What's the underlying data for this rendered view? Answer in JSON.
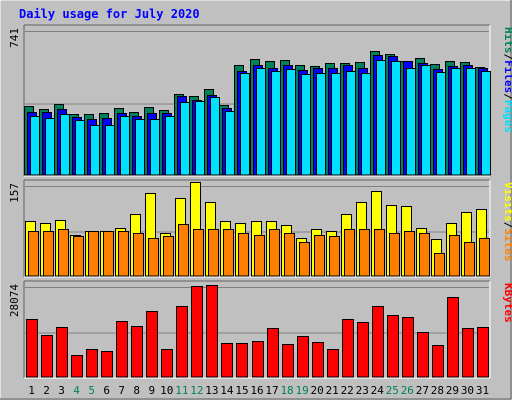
{
  "chart_data": {
    "type": "bar",
    "title": "Daily usage for July 2020",
    "x": [
      "1",
      "2",
      "3",
      "4",
      "5",
      "6",
      "7",
      "8",
      "9",
      "10",
      "11",
      "12",
      "13",
      "14",
      "15",
      "16",
      "17",
      "18",
      "19",
      "20",
      "21",
      "22",
      "23",
      "24",
      "25",
      "26",
      "27",
      "28",
      "29",
      "30",
      "31"
    ],
    "weekend_days": [
      "4",
      "5",
      "11",
      "12",
      "18",
      "19",
      "25",
      "26"
    ],
    "panels": [
      {
        "id": "hits",
        "ymax_label": "741",
        "ymax": 741,
        "grid_lines": 2,
        "axis_labels": [
          {
            "text": "Hits",
            "color": "#00805c"
          },
          {
            "text": "/",
            "color": "#000000"
          },
          {
            "text": "Files",
            "color": "#0000ff"
          },
          {
            "text": "/",
            "color": "#000000"
          },
          {
            "text": "Pages",
            "color": "#00e0ff"
          }
        ],
        "series": [
          {
            "name": "Hits",
            "color": "#00805c",
            "values": [
              357,
              344,
              369,
              315,
              315,
              323,
              347,
              325,
              352,
              335,
              421,
              409,
              445,
              361,
              566,
              596,
              590,
              595,
              566,
              563,
              576,
              576,
              582,
              638,
              626,
              589,
              601,
              572,
              589,
              584,
              559
            ]
          },
          {
            "name": "Files",
            "color": "#0000ff",
            "values": [
              327,
              327,
              341,
              299,
              291,
              294,
              324,
              307,
              320,
              320,
              408,
              389,
              415,
              345,
              536,
              566,
              554,
              566,
              541,
              553,
              553,
              566,
              553,
              619,
              614,
              589,
              575,
              545,
              563,
              566,
              553
            ]
          },
          {
            "name": "Pages",
            "color": "#00e0ff",
            "values": [
              306,
              298,
              318,
              285,
              262,
              262,
              306,
              292,
              290,
              305,
              380,
              385,
              405,
              331,
              526,
              550,
              539,
              549,
              520,
              528,
              528,
              536,
              528,
              595,
              589,
              550,
              567,
              530,
              553,
              550,
              536
            ]
          }
        ]
      },
      {
        "id": "visits",
        "ymax_label": "157",
        "ymax": 157,
        "grid_lines": 2,
        "axis_labels": [
          {
            "text": "Visits",
            "color": "#ffff00"
          },
          {
            "text": "/",
            "color": "#000000"
          },
          {
            "text": "Sites",
            "color": "#ff8000"
          }
        ],
        "series": [
          {
            "name": "Visits",
            "color": "#ffff00",
            "values": [
              96,
              93,
              99,
              73,
              79,
              79,
              84,
              108,
              145,
              76,
              136,
              164,
              130,
              96,
              93,
              96,
              96,
              90,
              67,
              82,
              79,
              108,
              130,
              149,
              125,
              122,
              85,
              66,
              93,
              113,
              117
            ]
          },
          {
            "name": "Sites",
            "color": "#ff8000",
            "values": [
              79,
              79,
              82,
              71,
              79,
              79,
              79,
              76,
              67,
              71,
              92,
              82,
              82,
              82,
              76,
              73,
              82,
              76,
              61,
              73,
              71,
              82,
              82,
              82,
              76,
              79,
              76,
              41,
              73,
              61,
              67
            ]
          }
        ]
      },
      {
        "id": "kbytes",
        "ymax_label": "28074",
        "ymax": 28074,
        "grid_lines": 2,
        "axis_labels": [
          {
            "text": "KBytes",
            "color": "#ff0000"
          }
        ],
        "series": [
          {
            "name": "KBytes",
            "color": "#ff0000",
            "values": [
              18260,
              13340,
              15790,
              6990,
              8810,
              8320,
              17570,
              16020,
              20730,
              8810,
              22270,
              28330,
              28630,
              10870,
              10870,
              11520,
              15470,
              10460,
              12920,
              11150,
              9070,
              18260,
              17260,
              22270,
              19300,
              18780,
              14060,
              10280,
              24890,
              15470,
              15710
            ]
          }
        ]
      }
    ],
    "colors": {
      "background": "#c0c0c0",
      "plot": "#c0c0c0",
      "title": "#0000ff",
      "tick_label": "#000000",
      "weekend_tick_label": "#00805c",
      "grid": "#808080"
    }
  }
}
